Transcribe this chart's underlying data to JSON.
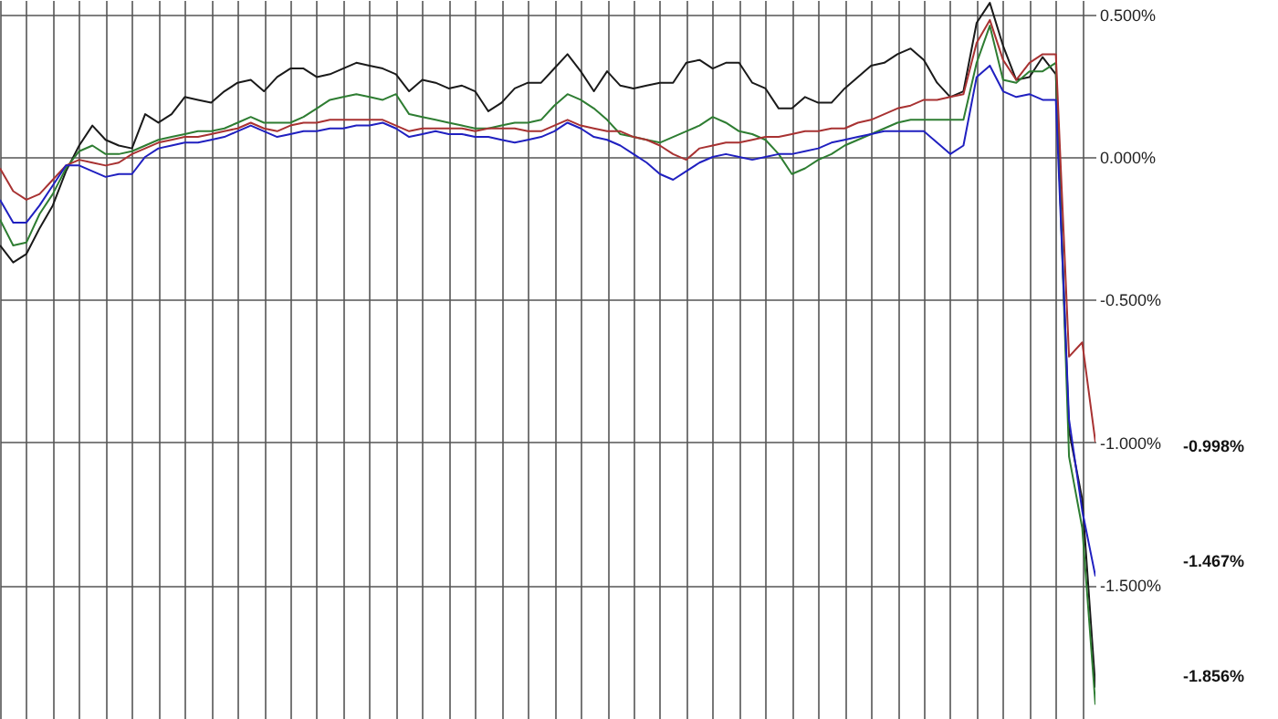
{
  "chart_data": {
    "type": "line",
    "ylim": [
      -1.97,
      0.55
    ],
    "categories": [
      null,
      null,
      null,
      null,
      null,
      null,
      null,
      null,
      null,
      null,
      null,
      null,
      null,
      null,
      null,
      null,
      null,
      null,
      null,
      null,
      null,
      null,
      null,
      null,
      null,
      null,
      null,
      null,
      null,
      null,
      null,
      null,
      null,
      null,
      null,
      null,
      null,
      null,
      null,
      null,
      null,
      null,
      null,
      null,
      null,
      null,
      null,
      null,
      null,
      null,
      null,
      null,
      null,
      null,
      null,
      null,
      null,
      null,
      null,
      null,
      null,
      null,
      null,
      null,
      null,
      null,
      null,
      null,
      null,
      null,
      null,
      null,
      null,
      null,
      null,
      null,
      null,
      null,
      null,
      null,
      null,
      null,
      null,
      null
    ],
    "yticks": [
      {
        "value": 0.5,
        "label": "0.500%"
      },
      {
        "value": 0,
        "label": "0.000%"
      },
      {
        "value": -0.5,
        "label": "-0.500%"
      },
      {
        "value": -1,
        "label": "-1.000%"
      },
      {
        "value": -1.5,
        "label": "-1.500%"
      }
    ],
    "tick_labels": "y",
    "grid": true,
    "marker": "none",
    "line_style": "solid",
    "annotations": [
      "-0.998%",
      "-1.467%",
      "-1.856%"
    ],
    "series": [
      {
        "color": "#1a1a1a",
        "values": [
          -0.31,
          -0.37,
          -0.34,
          -0.25,
          -0.17,
          -0.05,
          0.04,
          0.11,
          0.06,
          0.04,
          0.03,
          0.15,
          0.12,
          0.15,
          0.21,
          0.2,
          0.19,
          0.23,
          0.26,
          0.27,
          0.23,
          0.28,
          0.31,
          0.31,
          0.28,
          0.29,
          0.31,
          0.33,
          0.32,
          0.31,
          0.29,
          0.23,
          0.27,
          0.26,
          0.24,
          0.25,
          0.23,
          0.16,
          0.19,
          0.24,
          0.26,
          0.26,
          0.31,
          0.36,
          0.3,
          0.23,
          0.3,
          0.25,
          0.24,
          0.25,
          0.26,
          0.26,
          0.33,
          0.34,
          0.31,
          0.33,
          0.33,
          0.26,
          0.24,
          0.17,
          0.17,
          0.21,
          0.19,
          0.19,
          0.24,
          0.28,
          0.32,
          0.33,
          0.36,
          0.38,
          0.34,
          0.26,
          0.21,
          0.23,
          0.47,
          0.54,
          0.39,
          0.27,
          0.28,
          0.35,
          0.29,
          -0.96,
          -1.2,
          -1.86
        ]
      },
      {
        "color": "#2e7d32",
        "values": [
          -0.22,
          -0.31,
          -0.3,
          -0.2,
          -0.13,
          -0.04,
          0.02,
          0.04,
          0.01,
          0.01,
          0.02,
          0.04,
          0.06,
          0.07,
          0.08,
          0.09,
          0.09,
          0.1,
          0.12,
          0.14,
          0.12,
          0.12,
          0.12,
          0.14,
          0.17,
          0.2,
          0.21,
          0.22,
          0.21,
          0.2,
          0.22,
          0.15,
          0.14,
          0.13,
          0.12,
          0.11,
          0.1,
          0.1,
          0.11,
          0.12,
          0.12,
          0.13,
          0.18,
          0.22,
          0.2,
          0.17,
          0.13,
          0.08,
          0.07,
          0.06,
          0.05,
          0.07,
          0.09,
          0.11,
          0.14,
          0.12,
          0.09,
          0.08,
          0.06,
          0.01,
          -0.06,
          -0.04,
          -0.01,
          0.01,
          0.04,
          0.06,
          0.08,
          0.1,
          0.12,
          0.13,
          0.13,
          0.13,
          0.13,
          0.13,
          0.33,
          0.46,
          0.27,
          0.26,
          0.3,
          0.3,
          0.33,
          -1.05,
          -1.3,
          -1.92
        ]
      },
      {
        "color": "#a83232",
        "values": [
          -0.04,
          -0.12,
          -0.15,
          -0.13,
          -0.08,
          -0.03,
          -0.01,
          -0.02,
          -0.03,
          -0.02,
          0.01,
          0.03,
          0.05,
          0.06,
          0.07,
          0.07,
          0.08,
          0.09,
          0.1,
          0.12,
          0.1,
          0.09,
          0.11,
          0.12,
          0.12,
          0.13,
          0.13,
          0.13,
          0.13,
          0.13,
          0.11,
          0.09,
          0.1,
          0.1,
          0.1,
          0.1,
          0.09,
          0.1,
          0.1,
          0.1,
          0.09,
          0.09,
          0.11,
          0.13,
          0.11,
          0.1,
          0.09,
          0.09,
          0.07,
          0.06,
          0.04,
          0.01,
          -0.01,
          0.03,
          0.04,
          0.05,
          0.05,
          0.06,
          0.07,
          0.07,
          0.08,
          0.09,
          0.09,
          0.1,
          0.1,
          0.12,
          0.13,
          0.15,
          0.17,
          0.18,
          0.2,
          0.2,
          0.21,
          0.22,
          0.4,
          0.48,
          0.34,
          0.27,
          0.33,
          0.36,
          0.36,
          -0.7,
          -0.65,
          -1.0
        ]
      },
      {
        "color": "#2020c0",
        "values": [
          -0.15,
          -0.23,
          -0.23,
          -0.17,
          -0.1,
          -0.03,
          -0.03,
          -0.05,
          -0.07,
          -0.06,
          -0.06,
          0.0,
          0.03,
          0.04,
          0.05,
          0.05,
          0.06,
          0.07,
          0.09,
          0.11,
          0.09,
          0.07,
          0.08,
          0.09,
          0.09,
          0.1,
          0.1,
          0.11,
          0.11,
          0.12,
          0.1,
          0.07,
          0.08,
          0.09,
          0.08,
          0.08,
          0.07,
          0.07,
          0.06,
          0.05,
          0.06,
          0.07,
          0.09,
          0.12,
          0.1,
          0.07,
          0.06,
          0.04,
          0.01,
          -0.02,
          -0.06,
          -0.08,
          -0.05,
          -0.02,
          0.0,
          0.01,
          0.0,
          -0.01,
          0.0,
          0.01,
          0.01,
          0.02,
          0.03,
          0.05,
          0.06,
          0.07,
          0.08,
          0.09,
          0.09,
          0.09,
          0.09,
          0.05,
          0.01,
          0.04,
          0.28,
          0.32,
          0.23,
          0.21,
          0.22,
          0.2,
          0.2,
          -0.92,
          -1.24,
          -1.47
        ]
      }
    ]
  }
}
